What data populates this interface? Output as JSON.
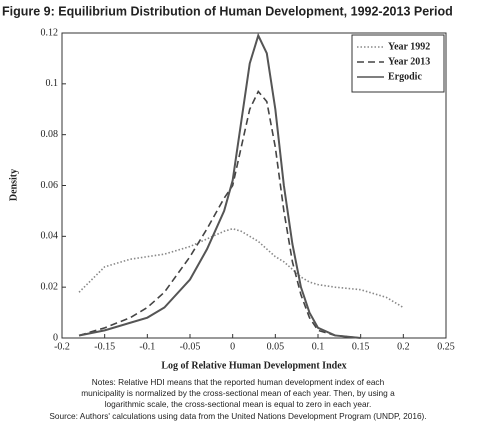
{
  "chart_data": {
    "type": "line",
    "title": "Figure 9: Equilibrium Distribution of Human Development, 1992-2013 Period",
    "x_label": "Log of Relative Human Development Index",
    "y_label": "Density",
    "x": [
      -0.18,
      -0.15,
      -0.12,
      -0.1,
      -0.08,
      -0.05,
      -0.03,
      -0.01,
      0,
      0.01,
      0.02,
      0.03,
      0.04,
      0.05,
      0.06,
      0.07,
      0.08,
      0.09,
      0.1,
      0.12,
      0.15,
      0.18,
      0.2
    ],
    "series": [
      {
        "name": "Year 1992",
        "color": "#888888",
        "dash": "dotted",
        "values": [
          0.018,
          0.028,
          0.031,
          0.032,
          0.033,
          0.036,
          0.039,
          0.042,
          0.043,
          0.042,
          0.04,
          0.038,
          0.035,
          0.032,
          0.03,
          0.027,
          0.024,
          0.022,
          0.021,
          0.02,
          0.019,
          0.016,
          0.012
        ]
      },
      {
        "name": "Year 2013",
        "color": "#444444",
        "dash": "dashed",
        "values": [
          0.001,
          0.004,
          0.008,
          0.012,
          0.018,
          0.032,
          0.043,
          0.055,
          0.06,
          0.075,
          0.09,
          0.097,
          0.093,
          0.075,
          0.05,
          0.03,
          0.017,
          0.008,
          0.003,
          0.001,
          0,
          null,
          null
        ]
      },
      {
        "name": "Ergodic",
        "color": "#555555",
        "dash": "solid",
        "values": [
          0.001,
          0.003,
          0.006,
          0.008,
          0.012,
          0.023,
          0.035,
          0.05,
          0.062,
          0.085,
          0.108,
          0.119,
          0.112,
          0.09,
          0.06,
          0.037,
          0.02,
          0.01,
          0.004,
          0.001,
          0,
          null,
          null
        ]
      }
    ],
    "xlim": [
      -0.2,
      0.25
    ],
    "xticks": [
      -0.2,
      -0.15,
      -0.1,
      -0.05,
      0,
      0.05,
      0.1,
      0.15,
      0.2,
      0.25
    ],
    "ylim": [
      0,
      0.12
    ],
    "yticks": [
      0,
      0.02,
      0.04,
      0.06,
      0.08,
      0.1,
      0.12
    ],
    "legend": "top-right",
    "notes": [
      "Notes: Relative HDI means that the reported human development index of each",
      "municipality is normalized by the cross-sectional mean of each year. Then, by using a",
      "logarithmic scale, the cross-sectional mean is equal to zero in each year.",
      "Source: Authors' calculations using data from the United Nations Development Program (UNDP, 2016)."
    ]
  }
}
